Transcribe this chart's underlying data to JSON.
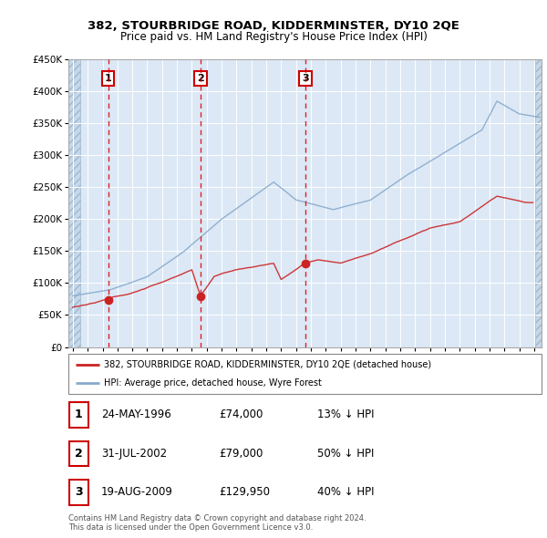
{
  "title": "382, STOURBRIDGE ROAD, KIDDERMINSTER, DY10 2QE",
  "subtitle": "Price paid vs. HM Land Registry's House Price Index (HPI)",
  "ytick_values": [
    0,
    50000,
    100000,
    150000,
    200000,
    250000,
    300000,
    350000,
    400000,
    450000
  ],
  "xmin": 1993.7,
  "xmax": 2025.5,
  "ymin": 0,
  "ymax": 450000,
  "sale_dates": [
    1996.38,
    2002.58,
    2009.63
  ],
  "sale_prices": [
    74000,
    79000,
    129950
  ],
  "sale_labels": [
    "1",
    "2",
    "3"
  ],
  "red_line_color": "#cc2222",
  "blue_line_color": "#88aacc",
  "marker_color": "#cc2222",
  "background_color": "#dce8f5",
  "legend_red_label": "382, STOURBRIDGE ROAD, KIDDERMINSTER, DY10 2QE (detached house)",
  "legend_blue_label": "HPI: Average price, detached house, Wyre Forest",
  "table_data": [
    [
      "1",
      "24-MAY-1996",
      "£74,000",
      "13% ↓ HPI"
    ],
    [
      "2",
      "31-JUL-2002",
      "£79,000",
      "50% ↓ HPI"
    ],
    [
      "3",
      "19-AUG-2009",
      "£129,950",
      "40% ↓ HPI"
    ]
  ],
  "footer": "Contains HM Land Registry data © Crown copyright and database right 2024.\nThis data is licensed under the Open Government Licence v3.0."
}
